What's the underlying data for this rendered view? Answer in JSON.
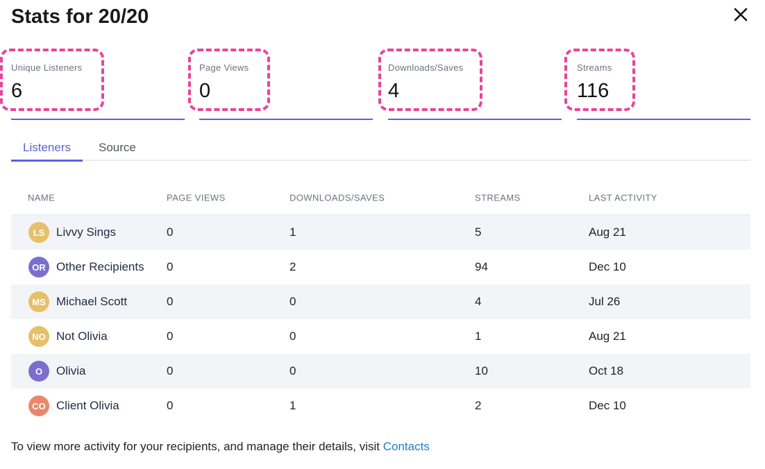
{
  "title": "Stats for 20/20",
  "stats": [
    {
      "label": "Unique Listeners",
      "value": "6"
    },
    {
      "label": "Page Views",
      "value": "0"
    },
    {
      "label": "Downloads/Saves",
      "value": "4"
    },
    {
      "label": "Streams",
      "value": "116"
    }
  ],
  "tabs": [
    "Listeners",
    "Source"
  ],
  "columns": [
    "NAME",
    "PAGE VIEWS",
    "DOWNLOADS/SAVES",
    "STREAMS",
    "LAST ACTIVITY"
  ],
  "rows": [
    {
      "initials": "LS",
      "color": "#e6c06a",
      "name": "Livvy Sings",
      "page_views": "0",
      "downloads": "1",
      "streams": "5",
      "last": "Aug 21"
    },
    {
      "initials": "OR",
      "color": "#7b6fce",
      "name": "Other Recipients",
      "page_views": "0",
      "downloads": "2",
      "streams": "94",
      "last": "Dec 10"
    },
    {
      "initials": "MS",
      "color": "#e6c06a",
      "name": "Michael Scott",
      "page_views": "0",
      "downloads": "0",
      "streams": "4",
      "last": "Jul 26"
    },
    {
      "initials": "NO",
      "color": "#e6c06a",
      "name": "Not Olivia",
      "page_views": "0",
      "downloads": "0",
      "streams": "1",
      "last": "Aug 21"
    },
    {
      "initials": "O",
      "color": "#7b6fce",
      "name": "Olivia",
      "page_views": "0",
      "downloads": "0",
      "streams": "10",
      "last": "Oct 18"
    },
    {
      "initials": "CO",
      "color": "#e8886a",
      "name": "Client Olivia",
      "page_views": "0",
      "downloads": "1",
      "streams": "2",
      "last": "Dec 10"
    }
  ],
  "footer": {
    "text": "To view more activity for your recipients, and manage their details, visit ",
    "link": "Contacts"
  }
}
